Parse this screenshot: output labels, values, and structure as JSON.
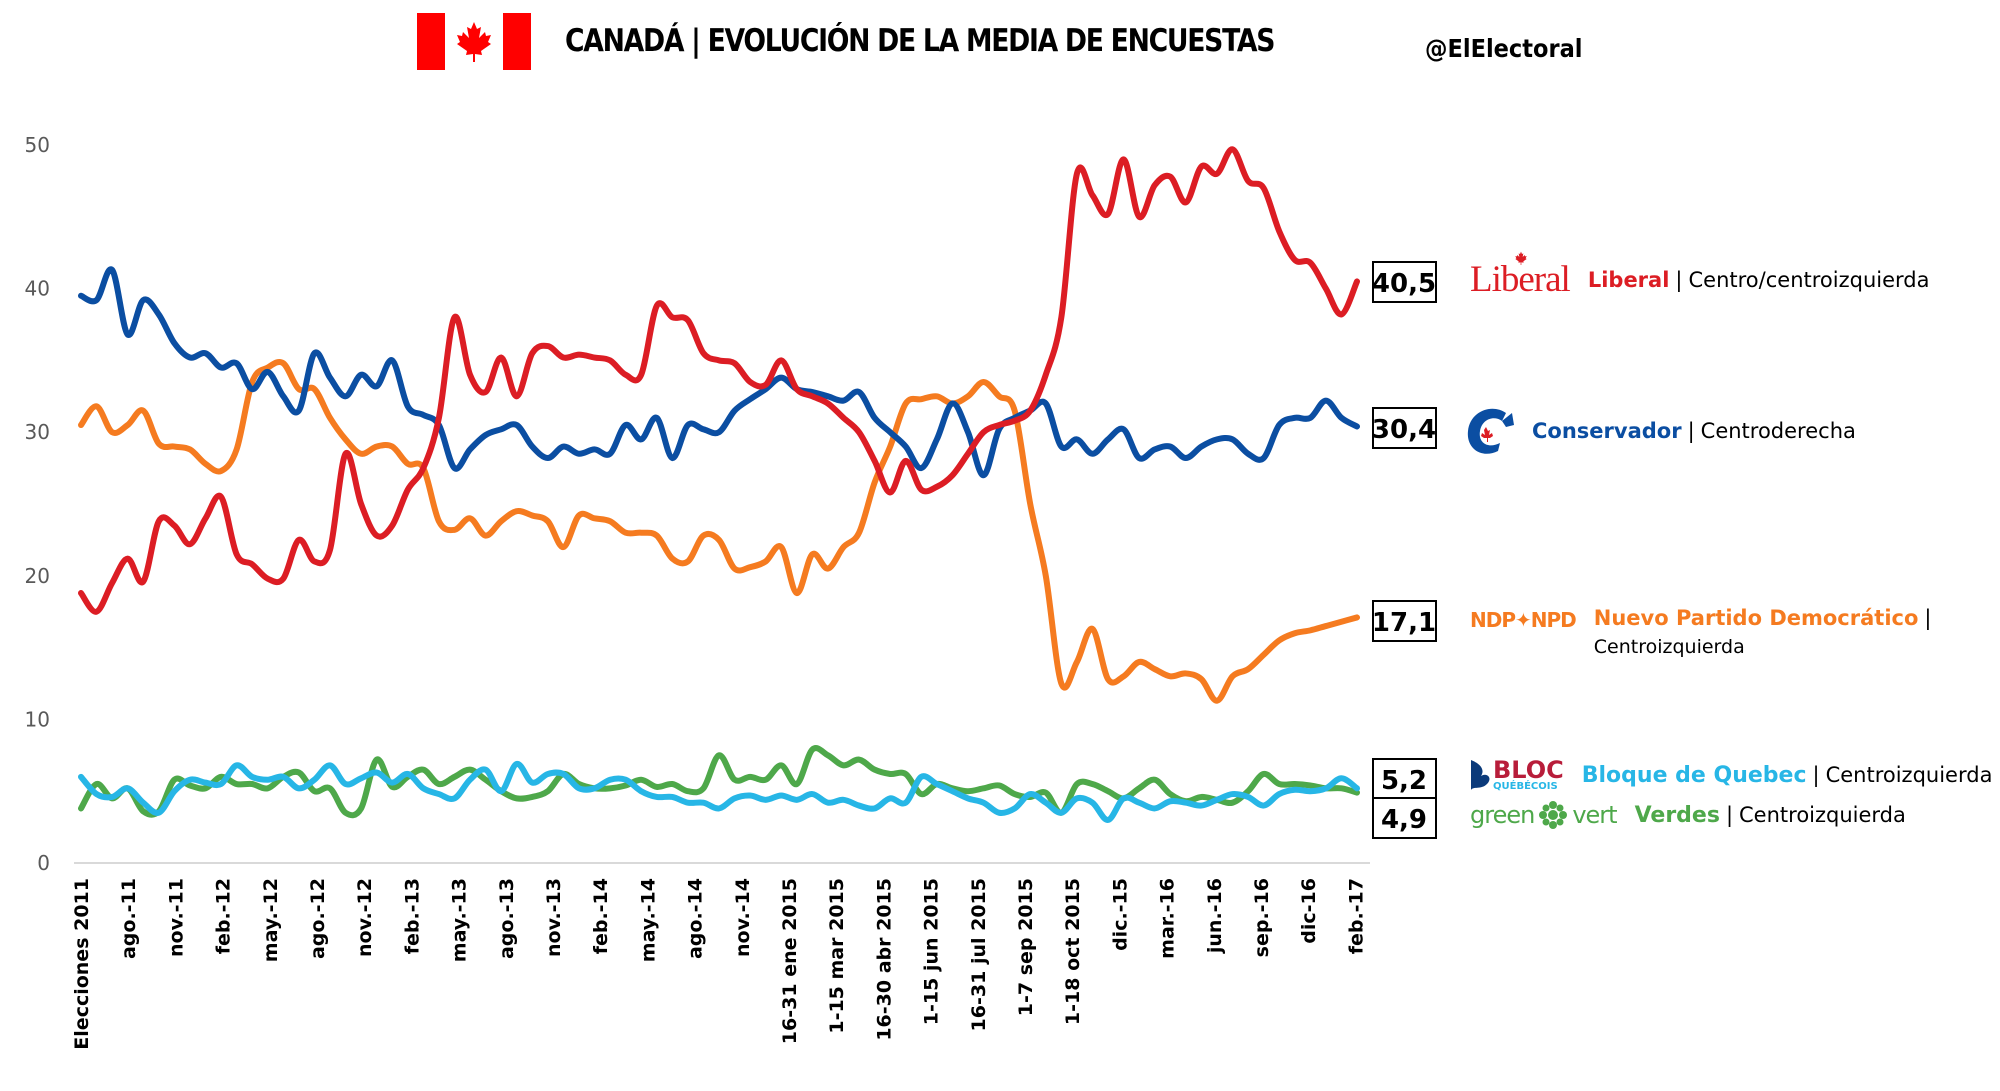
{
  "header": {
    "title": "CANADÁ | EVOLUCIÓN DE LA MEDIA DE ENCUESTAS",
    "handle": "@ElElectoral",
    "flag_icon": "canada-flag-icon"
  },
  "colors": {
    "liberal": "#dc1d24",
    "conservador": "#0b4ea2",
    "ndp": "#f57b20",
    "bloc": "#27b6e6",
    "verdes": "#4ea84a",
    "axis": "#d9d9d9",
    "tick_text": "#595959"
  },
  "legend": [
    {
      "key": "liberal",
      "logo_text": "Liberal",
      "name": "Liberal",
      "sep": "|",
      "ideology": "Centro/centroizquierda",
      "final_value": "40,5",
      "icon": "liberal-logo-icon"
    },
    {
      "key": "conservador",
      "logo_text": "C",
      "name": "Conservador",
      "sep": "|",
      "ideology": "Centroderecha",
      "final_value": "30,4",
      "icon": "conservative-logo-icon"
    },
    {
      "key": "ndp",
      "logo_text": "NDP✦NPD",
      "name": "Nuevo Partido Democrático",
      "sep": "|",
      "ideology": "Centroizquierda",
      "final_value": "17,1",
      "icon": "ndp-logo-icon"
    },
    {
      "key": "bloc",
      "logo_text": "BLOC",
      "logo_sub": "QUÉBÉCOIS",
      "name": "Bloque de Quebec",
      "sep": "|",
      "ideology": "Centroizquierda",
      "final_value": "5,2",
      "icon": "bloc-logo-icon"
    },
    {
      "key": "verdes",
      "logo_text": "green",
      "logo_text2": "vert",
      "name": "Verdes",
      "sep": "|",
      "ideology": "Centroizquierda",
      "final_value": "4,9",
      "icon": "green-logo-icon"
    }
  ],
  "chart_data": {
    "type": "line",
    "title": "CANADÁ | EVOLUCIÓN DE LA MEDIA DE ENCUESTAS",
    "xlabel": "",
    "ylabel": "",
    "ylim": [
      0,
      50
    ],
    "yticks": [
      "0",
      "10",
      "20",
      "30",
      "40",
      "50"
    ],
    "grid": false,
    "legend_position": "right",
    "categories": [
      "Elecciones 2011",
      "ago.-11",
      "nov.-11",
      "feb.-12",
      "may.-12",
      "ago.-12",
      "nov.-12",
      "feb.-13",
      "may.-13",
      "ago.-13",
      "nov.-13",
      "feb.-14",
      "may.-14",
      "ago.-14",
      "nov.-14",
      "16-31 ene 2015",
      "1-15 mar 2015",
      "16-30 abr 2015",
      "1-15 jun 2015",
      "16-31 jul 2015",
      "1-7 sep 2015",
      "1-18 oct 2015",
      "dic.-15",
      "mar.-16",
      "jun.-16",
      "sep.-16",
      "dic-16",
      "feb.-17"
    ],
    "points_per_category": 4,
    "series": [
      {
        "name": "Liberal",
        "key": "liberal",
        "final_label": "40,5",
        "values": [
          18.8,
          17.5,
          19.5,
          21.2,
          19.6,
          23.8,
          23.5,
          22.2,
          24.0,
          25.5,
          21.5,
          20.8,
          19.8,
          19.8,
          22.5,
          21.0,
          21.8,
          28.5,
          25.0,
          22.8,
          23.5,
          26.0,
          27.5,
          31.0,
          38.0,
          34.0,
          32.8,
          35.2,
          32.5,
          35.5,
          36.0,
          35.2,
          35.4,
          35.2,
          35.0,
          34.0,
          34.0,
          38.8,
          38.0,
          37.8,
          35.5,
          35.0,
          34.8,
          33.5,
          33.3,
          35.0,
          33.0,
          32.5,
          32.0,
          31.0,
          30.0,
          28.0,
          25.8,
          28.0,
          26.0,
          26.2,
          27.0,
          28.5,
          30.0,
          30.5,
          30.8,
          31.5,
          34.0,
          38.0,
          48.0,
          46.5,
          45.2,
          49.0,
          45.0,
          47.2,
          47.8,
          46.0,
          48.5,
          48.0,
          49.7,
          47.5,
          47.0,
          44.0,
          42.0,
          41.8,
          40.0,
          38.2,
          40.5
        ]
      },
      {
        "name": "Conservador",
        "key": "conservador",
        "final_label": "30,4",
        "values": [
          39.5,
          39.2,
          41.3,
          36.8,
          39.2,
          38.2,
          36.2,
          35.2,
          35.5,
          34.5,
          34.8,
          33.0,
          34.2,
          32.5,
          31.5,
          35.5,
          33.8,
          32.5,
          34.0,
          33.2,
          35.0,
          31.8,
          31.2,
          30.5,
          27.5,
          28.8,
          29.8,
          30.2,
          30.5,
          29.0,
          28.2,
          29.0,
          28.5,
          28.8,
          28.5,
          30.5,
          29.5,
          31.0,
          28.2,
          30.5,
          30.2,
          30.0,
          31.5,
          32.3,
          33.0,
          33.8,
          33.0,
          32.8,
          32.5,
          32.2,
          32.8,
          31.0,
          30.0,
          29.0,
          27.5,
          29.5,
          32.0,
          30.0,
          27.0,
          30.2,
          31.0,
          31.5,
          32.0,
          29.0,
          29.5,
          28.5,
          29.5,
          30.2,
          28.2,
          28.8,
          29.0,
          28.2,
          29.0,
          29.5,
          29.5,
          28.5,
          28.2,
          30.5,
          31.0,
          31.0,
          32.2,
          31.0,
          30.4
        ]
      },
      {
        "name": "Nuevo Partido Democrático",
        "key": "ndp",
        "final_label": "17,1",
        "values": [
          30.5,
          31.8,
          30.0,
          30.5,
          31.5,
          29.2,
          29.0,
          28.8,
          27.8,
          27.3,
          28.8,
          33.5,
          34.5,
          34.8,
          33.0,
          33.0,
          31.0,
          29.5,
          28.5,
          29.0,
          29.0,
          27.8,
          27.5,
          23.8,
          23.2,
          24.0,
          22.8,
          23.8,
          24.5,
          24.2,
          23.8,
          22.0,
          24.2,
          24.0,
          23.8,
          23.0,
          23.0,
          22.8,
          21.2,
          21.0,
          22.8,
          22.5,
          20.5,
          20.6,
          21.0,
          22.0,
          18.8,
          21.5,
          20.5,
          22.0,
          23.0,
          26.5,
          29.0,
          32.0,
          32.3,
          32.5,
          32.0,
          32.5,
          33.5,
          32.5,
          31.5,
          25.0,
          20.0,
          12.5,
          14.0,
          16.3,
          12.8,
          13.0,
          14.0,
          13.5,
          13.0,
          13.2,
          12.8,
          11.3,
          13.0,
          13.5,
          14.5,
          15.5,
          16.0,
          16.2,
          16.5,
          16.8,
          17.1
        ]
      },
      {
        "name": "Bloque de Quebec",
        "key": "bloc",
        "final_label": "5,2",
        "values": [
          6.0,
          4.8,
          4.6,
          5.2,
          4.2,
          3.5,
          5.0,
          5.8,
          5.6,
          5.5,
          6.8,
          6.0,
          5.8,
          6.0,
          5.2,
          5.8,
          6.8,
          5.5,
          5.9,
          6.3,
          5.6,
          6.2,
          5.2,
          4.8,
          4.5,
          5.8,
          6.5,
          5.0,
          6.9,
          5.6,
          6.2,
          6.2,
          5.2,
          5.2,
          5.8,
          5.8,
          5.0,
          4.6,
          4.6,
          4.2,
          4.2,
          3.8,
          4.5,
          4.7,
          4.4,
          4.7,
          4.4,
          4.8,
          4.2,
          4.4,
          4.0,
          3.8,
          4.5,
          4.2,
          6.0,
          5.5,
          5.0,
          4.5,
          4.2,
          3.5,
          3.8,
          4.8,
          4.2,
          3.5,
          4.5,
          4.2,
          3.0,
          4.5,
          4.2,
          3.8,
          4.3,
          4.2,
          4.0,
          4.4,
          4.8,
          4.6,
          4.0,
          4.8,
          5.1,
          5.0,
          5.2,
          5.9,
          5.2
        ]
      },
      {
        "name": "Verdes",
        "key": "verdes",
        "final_label": "4,9",
        "values": [
          3.8,
          5.5,
          4.5,
          5.2,
          3.6,
          3.6,
          5.8,
          5.4,
          5.2,
          6.0,
          5.5,
          5.5,
          5.2,
          6.0,
          6.3,
          5.0,
          5.2,
          3.5,
          3.8,
          7.2,
          5.3,
          6.0,
          6.5,
          5.5,
          6.0,
          6.5,
          5.8,
          5.0,
          4.5,
          4.6,
          5.0,
          6.2,
          5.5,
          5.2,
          5.2,
          5.4,
          5.8,
          5.3,
          5.5,
          5.0,
          5.2,
          7.5,
          5.8,
          6.0,
          5.8,
          6.8,
          5.5,
          7.9,
          7.5,
          6.8,
          7.2,
          6.5,
          6.2,
          6.2,
          4.8,
          5.5,
          5.2,
          5.0,
          5.2,
          5.4,
          4.8,
          4.6,
          4.9,
          3.5,
          5.5,
          5.5,
          5.0,
          4.5,
          5.2,
          5.8,
          4.8,
          4.3,
          4.6,
          4.4,
          4.2,
          5.0,
          6.2,
          5.5,
          5.5,
          5.4,
          5.2,
          5.2,
          4.9
        ]
      }
    ]
  }
}
